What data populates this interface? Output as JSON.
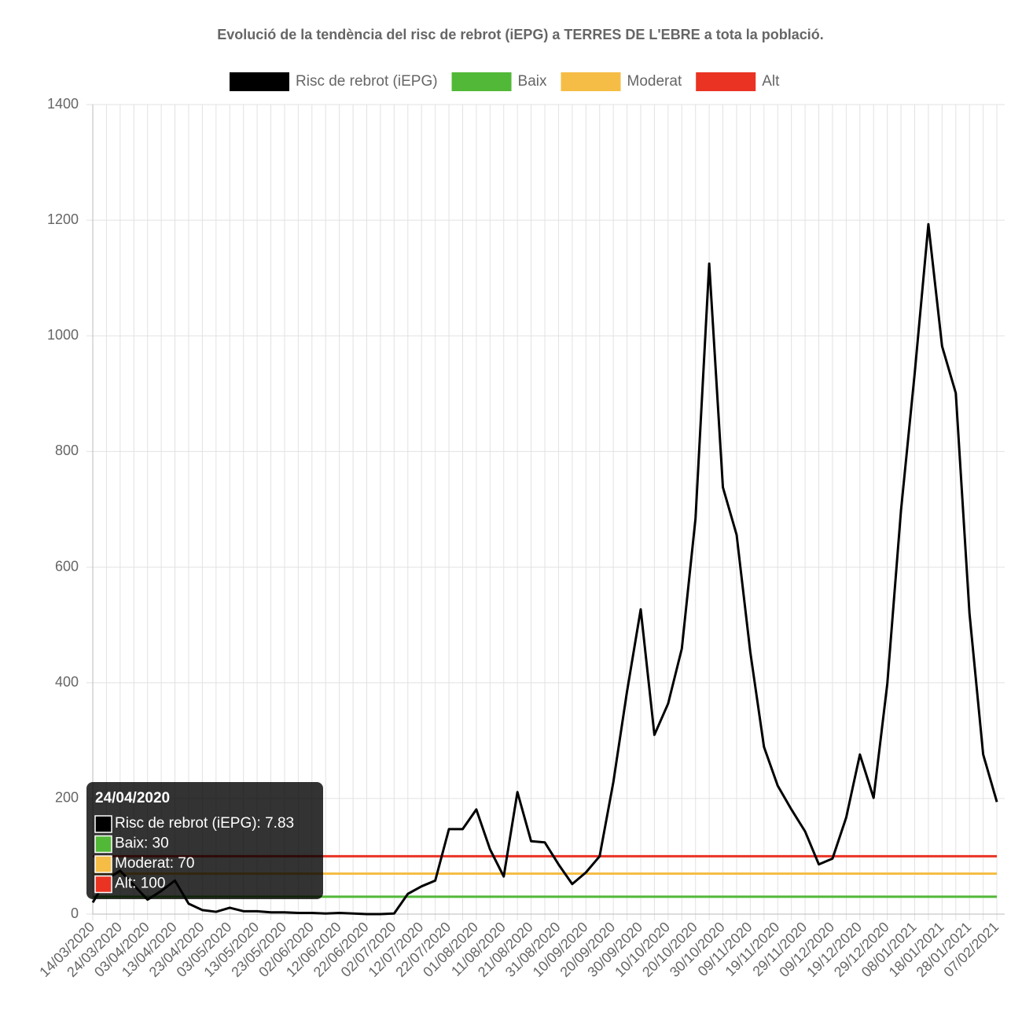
{
  "chart_data": {
    "type": "line",
    "title": "Evolució de la tendència del risc de rebrot (iEPG) a TERRES DE L'EBRE a tota la població.",
    "categories": [
      "14/03/2020",
      null,
      "24/03/2020",
      null,
      "03/04/2020",
      null,
      "13/04/2020",
      null,
      "23/04/2020",
      null,
      "03/05/2020",
      null,
      "13/05/2020",
      null,
      "23/05/2020",
      null,
      "02/06/2020",
      null,
      "12/06/2020",
      null,
      "22/06/2020",
      null,
      "02/07/2020",
      null,
      "12/07/2020",
      null,
      "22/07/2020",
      null,
      "01/08/2020",
      null,
      "11/08/2020",
      null,
      "21/08/2020",
      null,
      "31/08/2020",
      null,
      "10/09/2020",
      null,
      "20/09/2020",
      null,
      "30/09/2020",
      null,
      "10/10/2020",
      null,
      "20/10/2020",
      null,
      "30/10/2020",
      null,
      "09/11/2020",
      null,
      "19/11/2020",
      null,
      "29/11/2020",
      null,
      "09/12/2020",
      null,
      "19/12/2020",
      null,
      "29/12/2020",
      null,
      "08/01/2021",
      null,
      "18/01/2021",
      null,
      "28/01/2021",
      null,
      "07/02/2021"
    ],
    "series": [
      {
        "name": "Risc de rebrot (iEPG)",
        "color": "#000000",
        "values": [
          20,
          60,
          75,
          50,
          25,
          40,
          58,
          18,
          7,
          4,
          11,
          5,
          5,
          3,
          3,
          2,
          2,
          1,
          2,
          1,
          0,
          0,
          1,
          35,
          48,
          58,
          147,
          147,
          181,
          112,
          65,
          211,
          126,
          124,
          86,
          52,
          72,
          100,
          228,
          385,
          527,
          310,
          364,
          459,
          684,
          1125,
          738,
          656,
          453,
          289,
          222,
          181,
          143,
          86,
          96,
          167,
          276,
          201,
          398,
          698,
          935,
          1193,
          982,
          901,
          520,
          276,
          194
        ]
      },
      {
        "name": "Baix",
        "color": "#52b837",
        "values": [
          30,
          30,
          30,
          30,
          30,
          30,
          30,
          30,
          30,
          30,
          30,
          30,
          30,
          30,
          30,
          30,
          30,
          30,
          30,
          30,
          30,
          30,
          30,
          30,
          30,
          30,
          30,
          30,
          30,
          30,
          30,
          30,
          30,
          30,
          30,
          30,
          30,
          30,
          30,
          30,
          30,
          30,
          30,
          30,
          30,
          30,
          30,
          30,
          30,
          30,
          30,
          30,
          30,
          30,
          30,
          30,
          30,
          30,
          30,
          30,
          30,
          30,
          30,
          30,
          30,
          30,
          30
        ]
      },
      {
        "name": "Moderat",
        "color": "#f5bd45",
        "values": [
          70,
          70,
          70,
          70,
          70,
          70,
          70,
          70,
          70,
          70,
          70,
          70,
          70,
          70,
          70,
          70,
          70,
          70,
          70,
          70,
          70,
          70,
          70,
          70,
          70,
          70,
          70,
          70,
          70,
          70,
          70,
          70,
          70,
          70,
          70,
          70,
          70,
          70,
          70,
          70,
          70,
          70,
          70,
          70,
          70,
          70,
          70,
          70,
          70,
          70,
          70,
          70,
          70,
          70,
          70,
          70,
          70,
          70,
          70,
          70,
          70,
          70,
          70,
          70,
          70,
          70,
          70
        ]
      },
      {
        "name": "Alt",
        "color": "#ea3323",
        "values": [
          100,
          100,
          100,
          100,
          100,
          100,
          100,
          100,
          100,
          100,
          100,
          100,
          100,
          100,
          100,
          100,
          100,
          100,
          100,
          100,
          100,
          100,
          100,
          100,
          100,
          100,
          100,
          100,
          100,
          100,
          100,
          100,
          100,
          100,
          100,
          100,
          100,
          100,
          100,
          100,
          100,
          100,
          100,
          100,
          100,
          100,
          100,
          100,
          100,
          100,
          100,
          100,
          100,
          100,
          100,
          100,
          100,
          100,
          100,
          100,
          100,
          100,
          100,
          100,
          100,
          100,
          100
        ]
      }
    ],
    "ylim": [
      0,
      1400
    ],
    "yticks": [
      0,
      200,
      400,
      600,
      800,
      1000,
      1200,
      1400
    ],
    "grid": true,
    "tooltip": {
      "title": "24/04/2020",
      "items": [
        "Risc de rebrot (iEPG): 7.83",
        "Baix: 30",
        "Moderat: 70",
        "Alt: 100"
      ]
    }
  }
}
